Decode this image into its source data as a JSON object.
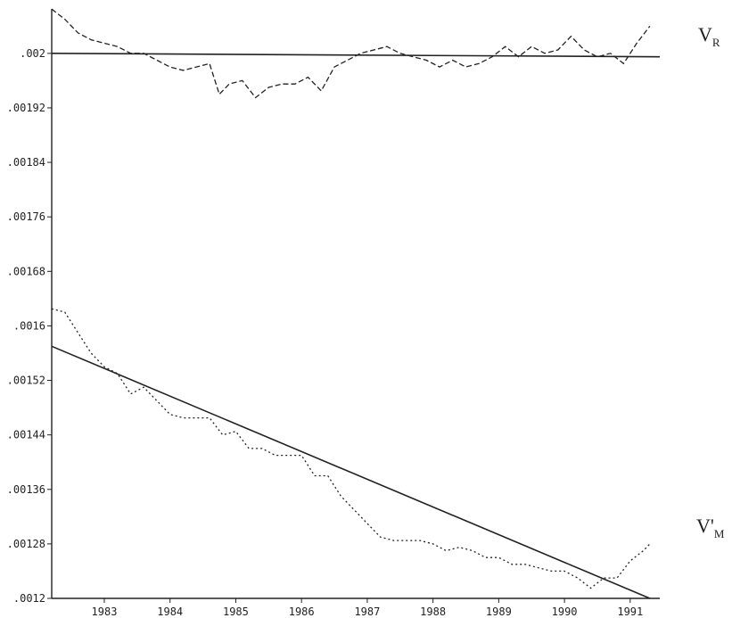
{
  "chart_data": {
    "type": "line",
    "title": "",
    "xlabel": "",
    "ylabel": "",
    "xlim": [
      1982.2,
      1991.45
    ],
    "ylim": [
      0.0012,
      0.00206
    ],
    "grid": false,
    "x_ticks": [
      1983,
      1984,
      1985,
      1986,
      1987,
      1988,
      1989,
      1990,
      1991
    ],
    "x_tick_labels": [
      "1983",
      "1984",
      "1985",
      "1986",
      "1987",
      "1988",
      "1989",
      "1990",
      "1991"
    ],
    "y_ticks": [
      0.0012,
      0.00128,
      0.00136,
      0.00144,
      0.00152,
      0.0016,
      0.00168,
      0.00176,
      0.00184,
      0.00192,
      0.002
    ],
    "y_tick_labels": [
      ".0012",
      ".00128",
      ".00136",
      ".00144",
      ".00152",
      ".0016",
      ".00168",
      ".00176",
      ".00184",
      ".00192",
      ".002"
    ],
    "series_labels": [
      {
        "main": "V",
        "sub": "R"
      },
      {
        "main": "V'",
        "sub": "M"
      }
    ],
    "series": [
      {
        "style": "dashed",
        "x": [
          1982.2,
          1982.4,
          1982.6,
          1982.8,
          1983.0,
          1983.2,
          1983.4,
          1983.6,
          1983.8,
          1984.0,
          1984.2,
          1984.4,
          1984.6,
          1984.75,
          1984.9,
          1985.1,
          1985.3,
          1985.5,
          1985.7,
          1985.9,
          1986.1,
          1986.3,
          1986.5,
          1986.7,
          1986.9,
          1987.1,
          1987.3,
          1987.5,
          1987.7,
          1987.9,
          1988.1,
          1988.3,
          1988.5,
          1988.7,
          1988.9,
          1989.1,
          1989.3,
          1989.5,
          1989.7,
          1989.9,
          1990.1,
          1990.3,
          1990.5,
          1990.7,
          1990.9,
          1991.1,
          1991.3
        ],
        "values": [
          0.002065,
          0.00205,
          0.00203,
          0.00202,
          0.002015,
          0.00201,
          0.002,
          0.002,
          0.00199,
          0.00198,
          0.001975,
          0.00198,
          0.001985,
          0.00194,
          0.001955,
          0.00196,
          0.001935,
          0.00195,
          0.001955,
          0.001955,
          0.001965,
          0.001945,
          0.00198,
          0.00199,
          0.002,
          0.002005,
          0.00201,
          0.002,
          0.001995,
          0.00199,
          0.00198,
          0.00199,
          0.00198,
          0.001985,
          0.001995,
          0.00201,
          0.001995,
          0.00201,
          0.002,
          0.002005,
          0.002025,
          0.002005,
          0.001995,
          0.002,
          0.001985,
          0.002015,
          0.00204
        ]
      },
      {
        "style": "solid",
        "x": [
          1982.2,
          1991.45
        ],
        "values": [
          0.002,
          0.001995
        ]
      },
      {
        "style": "dotted",
        "x": [
          1982.2,
          1982.4,
          1982.6,
          1982.8,
          1983.0,
          1983.2,
          1983.4,
          1983.6,
          1983.8,
          1984.0,
          1984.2,
          1984.4,
          1984.6,
          1984.8,
          1985.0,
          1985.2,
          1985.4,
          1985.6,
          1985.8,
          1986.0,
          1986.2,
          1986.4,
          1986.6,
          1986.8,
          1987.0,
          1987.2,
          1987.4,
          1987.6,
          1987.8,
          1988.0,
          1988.2,
          1988.4,
          1988.6,
          1988.8,
          1989.0,
          1989.2,
          1989.4,
          1989.6,
          1989.8,
          1990.0,
          1990.2,
          1990.4,
          1990.6,
          1990.8,
          1991.0,
          1991.2,
          1991.3
        ],
        "values": [
          0.001625,
          0.00162,
          0.00159,
          0.00156,
          0.00154,
          0.00153,
          0.0015,
          0.00151,
          0.00149,
          0.00147,
          0.001465,
          0.001465,
          0.001465,
          0.00144,
          0.001445,
          0.00142,
          0.00142,
          0.00141,
          0.00141,
          0.00141,
          0.00138,
          0.00138,
          0.00135,
          0.00133,
          0.00131,
          0.00129,
          0.001285,
          0.001285,
          0.001285,
          0.00128,
          0.00127,
          0.001275,
          0.00127,
          0.00126,
          0.00126,
          0.00125,
          0.00125,
          0.001245,
          0.00124,
          0.00124,
          0.00123,
          0.001215,
          0.00123,
          0.00123,
          0.001255,
          0.00127,
          0.00128
        ]
      },
      {
        "style": "solid",
        "x": [
          1982.2,
          1991.3
        ],
        "values": [
          0.00157,
          0.0012
        ]
      }
    ]
  }
}
